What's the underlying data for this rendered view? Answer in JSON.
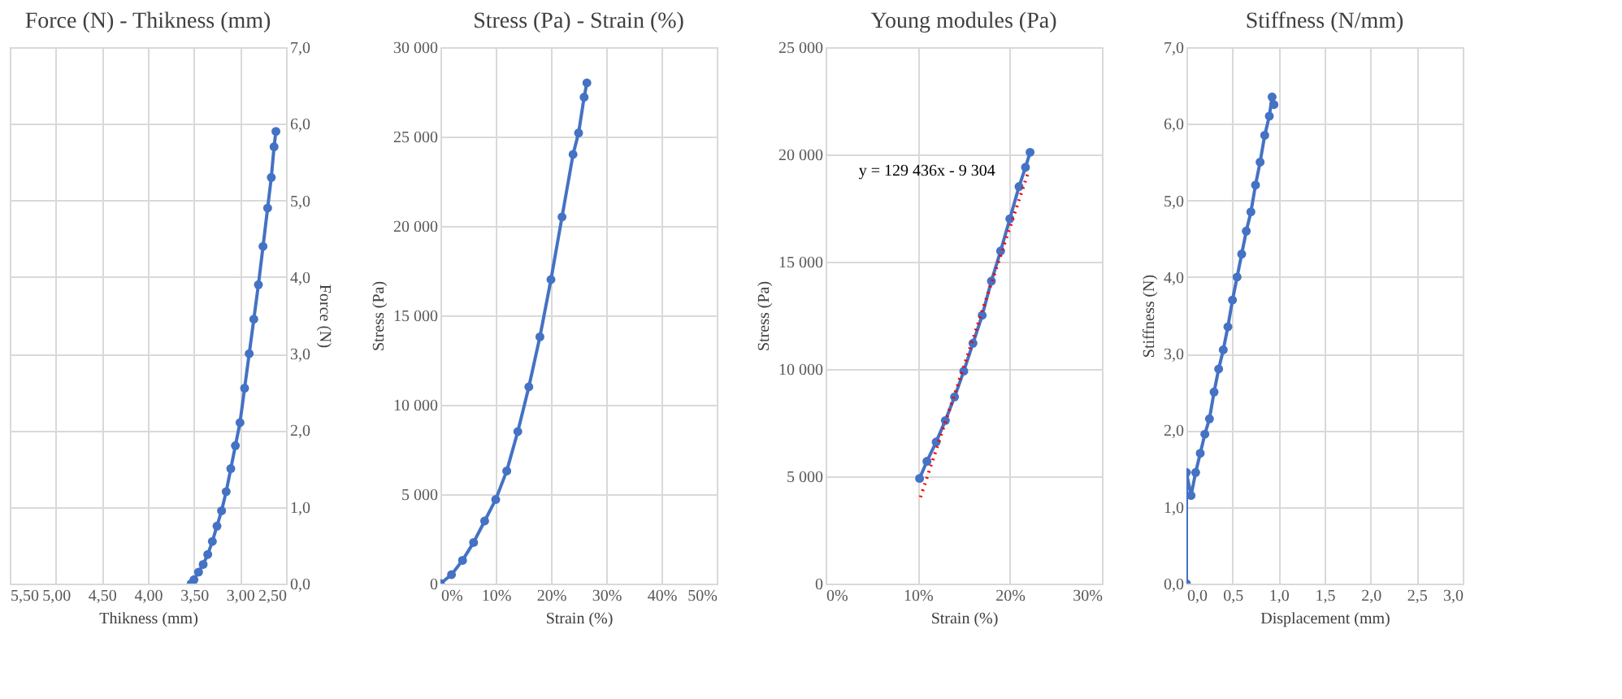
{
  "chart_data": [
    {
      "type": "line",
      "title": "Force (N) - Thikness (mm)",
      "xlabel": "Thikness (mm)",
      "ylabel": "Force (N)",
      "grid": true,
      "marker": "circle",
      "line_style": "solid",
      "xlim": [
        5.5,
        2.5
      ],
      "xticks": [
        {
          "value": 5.5,
          "label": "5,50"
        },
        {
          "value": 5.0,
          "label": "5,00"
        },
        {
          "value": 4.5,
          "label": "4,50"
        },
        {
          "value": 4.0,
          "label": "4,00"
        },
        {
          "value": 3.5,
          "label": "3,50"
        },
        {
          "value": 3.0,
          "label": "3,00"
        },
        {
          "value": 2.5,
          "label": "2,50"
        }
      ],
      "ylim": [
        0,
        7
      ],
      "yticks": [
        {
          "value": 0,
          "label": "0,0"
        },
        {
          "value": 1,
          "label": "1,0"
        },
        {
          "value": 2,
          "label": "2,0"
        },
        {
          "value": 3,
          "label": "3,0"
        },
        {
          "value": 4,
          "label": "4,0"
        },
        {
          "value": 5,
          "label": "5,0"
        },
        {
          "value": 6,
          "label": "6,0"
        },
        {
          "value": 7,
          "label": "7,0"
        }
      ],
      "series": [
        {
          "color": "#4472c4",
          "x": [
            3.53,
            3.5,
            3.45,
            3.4,
            3.35,
            3.3,
            3.25,
            3.2,
            3.15,
            3.1,
            3.05,
            3.0,
            2.95,
            2.9,
            2.85,
            2.8,
            2.75,
            2.7,
            2.66,
            2.63,
            2.61
          ],
          "values": [
            0,
            0.05,
            0.15,
            0.25,
            0.38,
            0.55,
            0.75,
            0.95,
            1.2,
            1.5,
            1.8,
            2.1,
            2.55,
            3.0,
            3.45,
            3.9,
            4.4,
            4.9,
            5.3,
            5.7,
            5.9
          ]
        }
      ]
    },
    {
      "type": "line",
      "title": "Stress (Pa) - Strain (%)",
      "xlabel": "Strain (%)",
      "ylabel": "Stress (Pa)",
      "grid": true,
      "marker": "circle",
      "line_style": "solid",
      "xlim": [
        0,
        50
      ],
      "xticks": [
        {
          "value": 0,
          "label": "0%"
        },
        {
          "value": 10,
          "label": "10%"
        },
        {
          "value": 20,
          "label": "20%"
        },
        {
          "value": 30,
          "label": "30%"
        },
        {
          "value": 40,
          "label": "40%"
        },
        {
          "value": 50,
          "label": "50%"
        }
      ],
      "ylim": [
        0,
        30000
      ],
      "yticks": [
        0,
        {
          "value": 5000,
          "label": "5 000"
        },
        {
          "value": 10000,
          "label": "10 000"
        },
        {
          "value": 15000,
          "label": "15 000"
        },
        {
          "value": 20000,
          "label": "20 000"
        },
        {
          "value": 25000,
          "label": "25 000"
        },
        {
          "value": 30000,
          "label": "30 000"
        }
      ],
      "series": [
        {
          "color": "#4472c4",
          "x": [
            0,
            2,
            4,
            6,
            8,
            10,
            12,
            14,
            16,
            18,
            20,
            22,
            24,
            25,
            26,
            26.5
          ],
          "values": [
            0,
            500,
            1300,
            2300,
            3500,
            4700,
            6300,
            8500,
            11000,
            13800,
            17000,
            20500,
            24000,
            25200,
            27200,
            28000
          ]
        }
      ]
    },
    {
      "type": "line",
      "title": "Young modules (Pa)",
      "xlabel": "Strain (%)",
      "ylabel": "Stress (Pa)",
      "grid": true,
      "marker": "circle",
      "line_style": "solid",
      "annotations": [
        "y = 129 436x  - 9 304"
      ],
      "xlim": [
        0,
        30
      ],
      "xticks": [
        {
          "value": 0,
          "label": "0%"
        },
        {
          "value": 10,
          "label": "10%"
        },
        {
          "value": 20,
          "label": "20%"
        },
        {
          "value": 30,
          "label": "30%"
        }
      ],
      "ylim": [
        0,
        25000
      ],
      "yticks": [
        0,
        {
          "value": 5000,
          "label": "5 000"
        },
        {
          "value": 10000,
          "label": "10 000"
        },
        {
          "value": 15000,
          "label": "15 000"
        },
        {
          "value": 20000,
          "label": "20 000"
        },
        {
          "value": 25000,
          "label": "25 000"
        }
      ],
      "series": [
        {
          "color": "#4472c4",
          "x": [
            10.2,
            11,
            12,
            13,
            14,
            15,
            16,
            17,
            18,
            19,
            20,
            21,
            21.7,
            22.2
          ],
          "values": [
            4900,
            5700,
            6600,
            7600,
            8700,
            9900,
            11200,
            12500,
            14100,
            15500,
            17000,
            18500,
            19400,
            20100
          ]
        },
        {
          "type": "line",
          "color": "#ff0000",
          "marker": "none",
          "line_style": "dotted",
          "x": [
            10.3,
            22
          ],
          "values": [
            4028,
            19172
          ]
        }
      ]
    },
    {
      "type": "line",
      "title": "Stiffness (N/mm)",
      "xlabel": "Displacement (mm)",
      "ylabel": "Stiffness (N)",
      "grid": true,
      "marker": "circle",
      "line_style": "solid",
      "xlim": [
        0,
        3
      ],
      "xticks": [
        {
          "value": 0,
          "label": "0,0"
        },
        {
          "value": 0.5,
          "label": "0,5"
        },
        {
          "value": 1,
          "label": "1,0"
        },
        {
          "value": 1.5,
          "label": "1,5"
        },
        {
          "value": 2,
          "label": "2,0"
        },
        {
          "value": 2.5,
          "label": "2,5"
        },
        {
          "value": 3,
          "label": "3,0"
        }
      ],
      "ylim": [
        0,
        7
      ],
      "yticks": [
        {
          "value": 0,
          "label": "0,0"
        },
        {
          "value": 1,
          "label": "1,0"
        },
        {
          "value": 2,
          "label": "2,0"
        },
        {
          "value": 3,
          "label": "3,0"
        },
        {
          "value": 4,
          "label": "4,0"
        },
        {
          "value": 5,
          "label": "5,0"
        },
        {
          "value": 6,
          "label": "6,0"
        },
        {
          "value": 7,
          "label": "7,0"
        }
      ],
      "series": [
        {
          "color": "#4472c4",
          "x": [
            0,
            0,
            0.05,
            0.1,
            0.15,
            0.2,
            0.25,
            0.3,
            0.35,
            0.4,
            0.45,
            0.5,
            0.55,
            0.6,
            0.65,
            0.7,
            0.75,
            0.8,
            0.85,
            0.9,
            0.93,
            0.95
          ],
          "values": [
            0,
            1.45,
            1.15,
            1.45,
            1.7,
            1.95,
            2.15,
            2.5,
            2.8,
            3.05,
            3.35,
            3.7,
            4.0,
            4.3,
            4.6,
            4.85,
            5.2,
            5.5,
            5.85,
            6.1,
            6.35,
            6.25
          ]
        }
      ]
    }
  ]
}
